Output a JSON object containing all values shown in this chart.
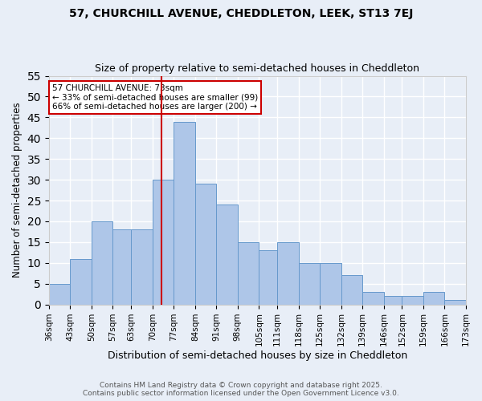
{
  "title1": "57, CHURCHILL AVENUE, CHEDDLETON, LEEK, ST13 7EJ",
  "title2": "Size of property relative to semi-detached houses in Cheddleton",
  "xlabel": "Distribution of semi-detached houses by size in Cheddleton",
  "ylabel": "Number of semi-detached properties",
  "bin_labels": [
    "36sqm",
    "43sqm",
    "50sqm",
    "57sqm",
    "63sqm",
    "70sqm",
    "77sqm",
    "84sqm",
    "91sqm",
    "98sqm",
    "105sqm",
    "111sqm",
    "118sqm",
    "125sqm",
    "132sqm",
    "139sqm",
    "146sqm",
    "152sqm",
    "159sqm",
    "166sqm",
    "173sqm"
  ],
  "bin_edges": [
    36,
    43,
    50,
    57,
    63,
    70,
    77,
    84,
    91,
    98,
    105,
    111,
    118,
    125,
    132,
    139,
    146,
    152,
    159,
    166,
    173
  ],
  "counts": [
    5,
    11,
    20,
    18,
    18,
    30,
    44,
    29,
    24,
    15,
    13,
    15,
    10,
    10,
    7,
    3,
    2,
    2,
    3,
    1
  ],
  "bar_color": "#aec6e8",
  "bar_edge_color": "#6699cc",
  "property_size": 73,
  "vline_color": "#cc0000",
  "annotation_title": "57 CHURCHILL AVENUE: 73sqm",
  "annotation_line1": "← 33% of semi-detached houses are smaller (99)",
  "annotation_line2": "66% of semi-detached houses are larger (200) →",
  "annotation_box_color": "#ffffff",
  "annotation_box_edge": "#cc0000",
  "background_color": "#e8eef7",
  "grid_color": "#ffffff",
  "footer1": "Contains HM Land Registry data © Crown copyright and database right 2025.",
  "footer2": "Contains public sector information licensed under the Open Government Licence v3.0.",
  "ylim": [
    0,
    55
  ],
  "yticks": [
    0,
    5,
    10,
    15,
    20,
    25,
    30,
    35,
    40,
    45,
    50,
    55
  ]
}
